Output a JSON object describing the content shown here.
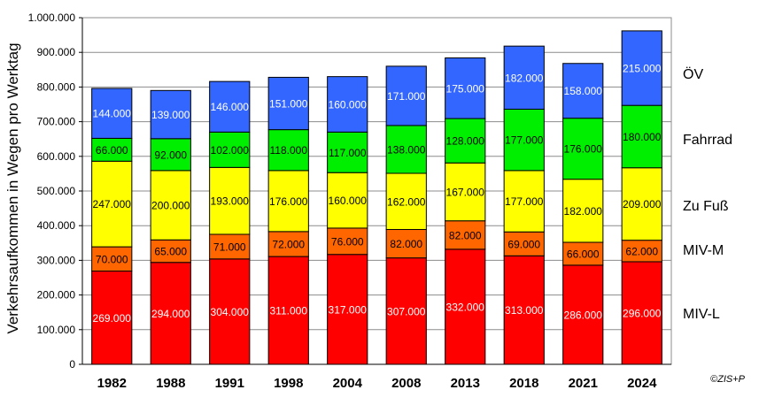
{
  "chart_data": {
    "type": "bar",
    "stacked": true,
    "categories": [
      "1982",
      "1988",
      "1991",
      "1998",
      "2004",
      "2008",
      "2013",
      "2018",
      "2021",
      "2024"
    ],
    "series": [
      {
        "name": "MIV-L",
        "color": "#ff0000",
        "values": [
          269000,
          294000,
          304000,
          311000,
          317000,
          307000,
          332000,
          313000,
          286000,
          296000
        ],
        "labels": [
          "269.000",
          "294.000",
          "304.000",
          "311.000",
          "317.000",
          "307.000",
          "332.000",
          "313.000",
          "286.000",
          "296.000"
        ],
        "label_color": "#ffffff"
      },
      {
        "name": "MIV-M",
        "color": "#ff6600",
        "values": [
          70000,
          65000,
          71000,
          72000,
          76000,
          82000,
          82000,
          69000,
          66000,
          62000
        ],
        "labels": [
          "70.000",
          "65.000",
          "71.000",
          "72.000",
          "76.000",
          "82.000",
          "82.000",
          "69.000",
          "66.000",
          "62.000"
        ],
        "label_color": "#000000"
      },
      {
        "name": "Zu Fuß",
        "color": "#ffff00",
        "values": [
          247000,
          200000,
          193000,
          176000,
          160000,
          162000,
          167000,
          177000,
          182000,
          209000
        ],
        "labels": [
          "247.000",
          "200.000",
          "193.000",
          "176.000",
          "160.000",
          "162.000",
          "167.000",
          "177.000",
          "182.000",
          "209.000"
        ],
        "label_color": "#000000"
      },
      {
        "name": "Fahrrad",
        "color": "#00ee00",
        "values": [
          66000,
          92000,
          102000,
          118000,
          117000,
          138000,
          128000,
          177000,
          176000,
          180000
        ],
        "labels": [
          "66.000",
          "92.000",
          "102.000",
          "118.000",
          "117.000",
          "138.000",
          "128.000",
          "177.000",
          "176.000",
          "180.000"
        ],
        "label_color": "#000000"
      },
      {
        "name": "ÖV",
        "color": "#3366ff",
        "values": [
          144000,
          139000,
          146000,
          151000,
          160000,
          171000,
          175000,
          182000,
          158000,
          215000
        ],
        "labels": [
          "144.000",
          "139.000",
          "146.000",
          "151.000",
          "160.000",
          "171.000",
          "175.000",
          "182.000",
          "158.000",
          "215.000"
        ],
        "label_color": "#ffffff"
      }
    ],
    "ylabel": "Verkehrsaufkommen in Wegen pro Werktag",
    "xlabel": "",
    "ylim": [
      0,
      1000000
    ],
    "yticks": [
      0,
      100000,
      200000,
      300000,
      400000,
      500000,
      600000,
      700000,
      800000,
      900000,
      1000000
    ],
    "ytick_labels": [
      "0",
      "100.000",
      "200.000",
      "300.000",
      "400.000",
      "500.000",
      "600.000",
      "700.000",
      "800.000",
      "900.000",
      "1.000.000"
    ],
    "grid": true,
    "legend": "right, labels beside each stacked segment"
  },
  "copyright": "©ZIS+P"
}
